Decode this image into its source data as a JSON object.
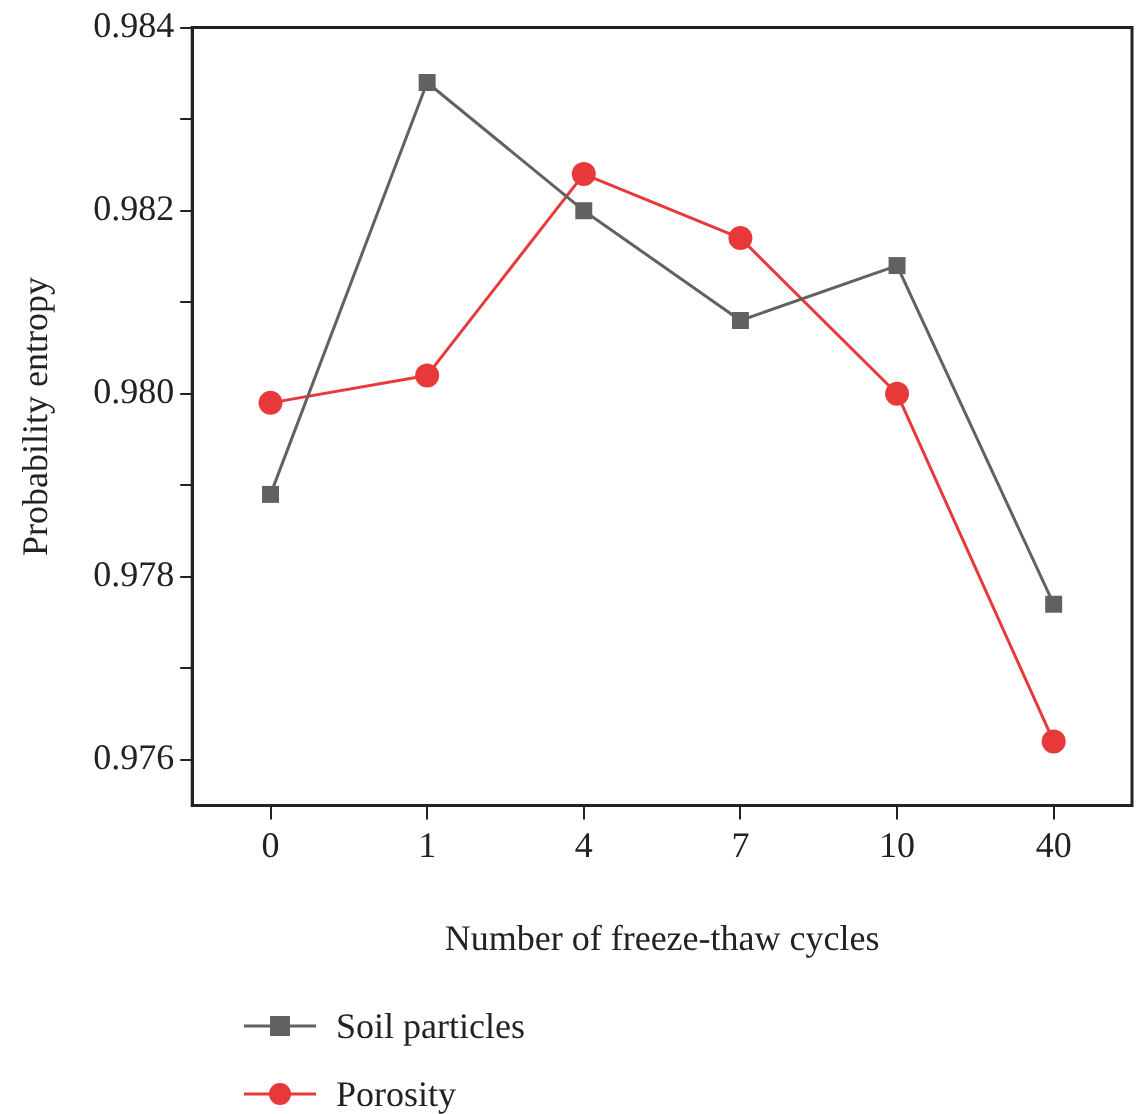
{
  "chart_data": {
    "type": "line",
    "xlabel": "Number of freeze-thaw cycles",
    "ylabel": "Probability entropy",
    "categories": [
      "0",
      "1",
      "4",
      "7",
      "10",
      "40"
    ],
    "series": [
      {
        "name": "Soil particles",
        "color": "#616161",
        "marker": "square",
        "values": [
          0.9789,
          0.9834,
          0.982,
          0.9808,
          0.9814,
          0.9777
        ]
      },
      {
        "name": "Porosity",
        "color": "#e8393a",
        "marker": "circle",
        "values": [
          0.9799,
          0.9802,
          0.9824,
          0.9817,
          0.98,
          0.9762
        ]
      }
    ],
    "ylim": [
      0.9755,
      0.984
    ],
    "yticks": [
      {
        "value": 0.976,
        "label": "0.976"
      },
      {
        "value": 0.977,
        "label": null
      },
      {
        "value": 0.978,
        "label": "0.978"
      },
      {
        "value": 0.979,
        "label": null
      },
      {
        "value": 0.98,
        "label": "0.980"
      },
      {
        "value": 0.981,
        "label": null
      },
      {
        "value": 0.982,
        "label": "0.982"
      },
      {
        "value": 0.983,
        "label": null
      },
      {
        "value": 0.984,
        "label": "0.984"
      }
    ],
    "grid": false,
    "legend": "bottom left",
    "line_style": "solid"
  }
}
